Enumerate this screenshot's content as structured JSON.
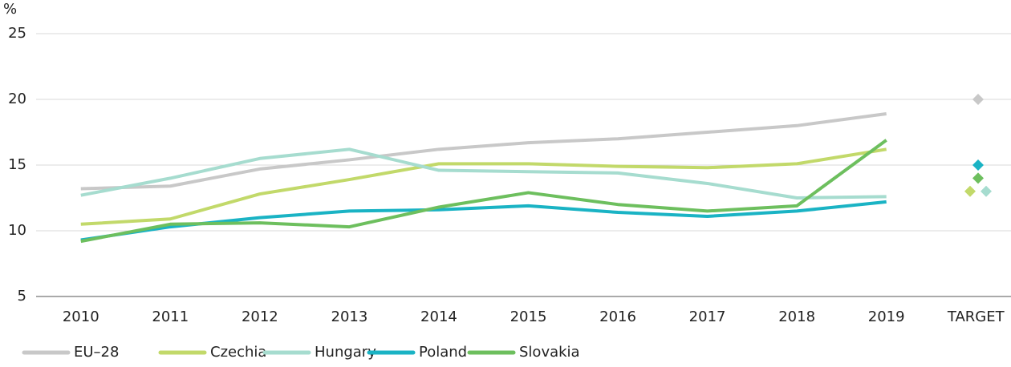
{
  "chart_data": {
    "type": "line",
    "y_label": "%",
    "categories": [
      "2010",
      "2011",
      "2012",
      "2013",
      "2014",
      "2015",
      "2016",
      "2017",
      "2018",
      "2019",
      "TARGET"
    ],
    "ylim": [
      5,
      25
    ],
    "yticks": [
      5,
      10,
      15,
      20,
      25
    ],
    "grid": true,
    "legend": "bottom",
    "series": [
      {
        "name": "EU–28",
        "color": "#c8c8c8",
        "values": [
          13.2,
          13.4,
          14.7,
          15.4,
          16.2,
          16.7,
          17.0,
          17.5,
          18.0,
          18.9,
          null
        ],
        "target": 20
      },
      {
        "name": "Czechia",
        "color": "#c2d96a",
        "values": [
          10.5,
          10.9,
          12.8,
          13.9,
          15.1,
          15.1,
          14.9,
          14.8,
          15.1,
          16.2,
          null
        ],
        "target": 13
      },
      {
        "name": "Hungary",
        "color": "#a6dccf",
        "values": [
          12.7,
          14.0,
          15.5,
          16.2,
          14.6,
          14.5,
          14.4,
          13.6,
          12.5,
          12.6,
          null
        ],
        "target": 13
      },
      {
        "name": "Poland",
        "color": "#1ab3c4",
        "values": [
          9.3,
          10.3,
          11.0,
          11.5,
          11.6,
          11.9,
          11.4,
          11.1,
          11.5,
          12.2,
          null
        ],
        "target": 15
      },
      {
        "name": "Slovakia",
        "color": "#6dbf5e",
        "values": [
          9.2,
          10.5,
          10.6,
          10.3,
          11.8,
          12.9,
          12.0,
          11.5,
          11.9,
          16.9,
          null
        ],
        "target": 14
      }
    ]
  }
}
